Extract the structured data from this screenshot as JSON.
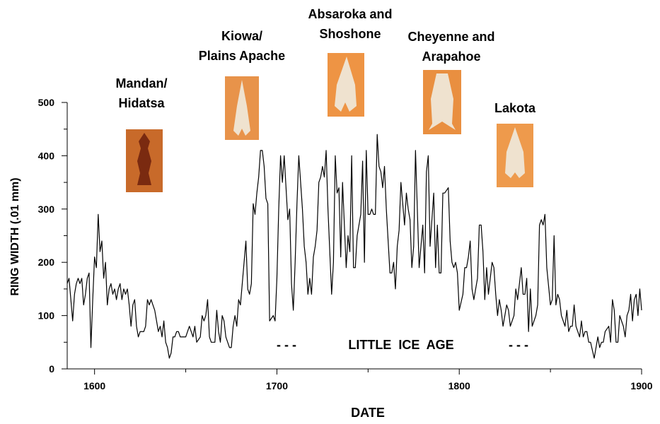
{
  "chart_data": {
    "type": "line",
    "xlabel": "DATE",
    "ylabel": "RING WIDTH (.01 mm)",
    "xlim": [
      1585,
      1900
    ],
    "ylim": [
      0,
      500
    ],
    "xticks": [
      1600,
      1700,
      1800,
      1900
    ],
    "xminor": [
      1650,
      1750,
      1850
    ],
    "yticks": [
      0,
      100,
      200,
      300,
      400,
      500
    ],
    "yminor": [
      50,
      150,
      250,
      350,
      450
    ],
    "color": "#000000",
    "annotations": [
      {
        "lines": [
          "Mandan/",
          "Hidatsa"
        ]
      },
      {
        "lines": [
          "Kiowa/",
          "Plains Apache"
        ]
      },
      {
        "lines": [
          "Absaroka and",
          "Shoshone"
        ]
      },
      {
        "lines": [
          "Cheyenne and",
          "Arapahoe"
        ]
      },
      {
        "lines": [
          "Lakota"
        ]
      },
      {
        "lines": [
          "- - -"
        ]
      },
      {
        "lines": [
          "LITTLE  ICE  AGE"
        ]
      },
      {
        "lines": [
          "- - -"
        ]
      }
    ],
    "x": [
      1585,
      1586,
      1587,
      1588,
      1589,
      1590,
      1591,
      1592,
      1593,
      1594,
      1595,
      1596,
      1597,
      1598,
      1599,
      1600,
      1601,
      1602,
      1603,
      1604,
      1605,
      1606,
      1607,
      1608,
      1609,
      1610,
      1611,
      1612,
      1613,
      1614,
      1615,
      1616,
      1617,
      1618,
      1619,
      1620,
      1621,
      1622,
      1623,
      1624,
      1625,
      1626,
      1627,
      1628,
      1629,
      1630,
      1631,
      1632,
      1633,
      1634,
      1635,
      1636,
      1637,
      1638,
      1639,
      1640,
      1641,
      1642,
      1643,
      1644,
      1645,
      1646,
      1647,
      1648,
      1649,
      1650,
      1651,
      1652,
      1653,
      1654,
      1655,
      1656,
      1657,
      1658,
      1659,
      1660,
      1661,
      1662,
      1663,
      1664,
      1665,
      1666,
      1667,
      1668,
      1669,
      1670,
      1671,
      1672,
      1673,
      1674,
      1675,
      1676,
      1677,
      1678,
      1679,
      1680,
      1681,
      1682,
      1683,
      1684,
      1685,
      1686,
      1687,
      1688,
      1689,
      1690,
      1691,
      1692,
      1693,
      1694,
      1695,
      1696,
      1697,
      1698,
      1699,
      1700,
      1701,
      1702,
      1703,
      1704,
      1705,
      1706,
      1707,
      1708,
      1709,
      1710,
      1711,
      1712,
      1713,
      1714,
      1715,
      1716,
      1717,
      1718,
      1719,
      1720,
      1721,
      1722,
      1723,
      1724,
      1725,
      1726,
      1727,
      1728,
      1729,
      1730,
      1731,
      1732,
      1733,
      1734,
      1735,
      1736,
      1737,
      1738,
      1739,
      1740,
      1741,
      1742,
      1743,
      1744,
      1745,
      1746,
      1747,
      1748,
      1749,
      1750,
      1751,
      1752,
      1753,
      1754,
      1755,
      1756,
      1757,
      1758,
      1759,
      1760,
      1761,
      1762,
      1763,
      1764,
      1765,
      1766,
      1767,
      1768,
      1769,
      1770,
      1771,
      1772,
      1773,
      1774,
      1775,
      1776,
      1777,
      1778,
      1779,
      1780,
      1781,
      1782,
      1783,
      1784,
      1785,
      1786,
      1787,
      1788,
      1789,
      1790,
      1791,
      1792,
      1793,
      1794,
      1795,
      1796,
      1797,
      1798,
      1799,
      1800,
      1801,
      1802,
      1803,
      1804,
      1805,
      1806,
      1807,
      1808,
      1809,
      1810,
      1811,
      1812,
      1813,
      1814,
      1815,
      1816,
      1817,
      1818,
      1819,
      1820,
      1821,
      1822,
      1823,
      1824,
      1825,
      1826,
      1827,
      1828,
      1829,
      1830,
      1831,
      1832,
      1833,
      1834,
      1835,
      1836,
      1837,
      1838,
      1839,
      1840,
      1841,
      1842,
      1843,
      1844,
      1845,
      1846,
      1847,
      1848,
      1849,
      1850,
      1851,
      1852,
      1853,
      1854,
      1855,
      1856,
      1857,
      1858,
      1859,
      1860,
      1861,
      1862,
      1863,
      1864,
      1865,
      1866,
      1867,
      1868,
      1869,
      1870,
      1871,
      1872,
      1873,
      1874,
      1875,
      1876,
      1877,
      1878,
      1879,
      1880,
      1881,
      1882,
      1883,
      1884,
      1885,
      1886,
      1887,
      1888,
      1889,
      1890,
      1891,
      1892,
      1893,
      1894,
      1895,
      1896,
      1897,
      1898,
      1899,
      1900
    ],
    "values": [
      160,
      170,
      130,
      90,
      140,
      160,
      170,
      160,
      170,
      120,
      140,
      170,
      180,
      40,
      130,
      210,
      190,
      290,
      220,
      240,
      170,
      200,
      120,
      150,
      160,
      140,
      150,
      130,
      150,
      160,
      130,
      150,
      140,
      150,
      120,
      80,
      120,
      130,
      80,
      60,
      70,
      70,
      70,
      80,
      130,
      120,
      130,
      120,
      110,
      90,
      70,
      80,
      60,
      90,
      50,
      40,
      20,
      30,
      60,
      60,
      70,
      70,
      60,
      60,
      60,
      60,
      70,
      80,
      70,
      60,
      80,
      50,
      55,
      60,
      100,
      90,
      100,
      130,
      60,
      50,
      50,
      50,
      110,
      70,
      50,
      100,
      90,
      60,
      50,
      40,
      40,
      80,
      100,
      80,
      130,
      120,
      160,
      200,
      240,
      150,
      140,
      160,
      310,
      290,
      330,
      360,
      410,
      410,
      380,
      320,
      310,
      90,
      95,
      100,
      90,
      170,
      300,
      400,
      350,
      400,
      340,
      280,
      300,
      160,
      110,
      200,
      310,
      400,
      350,
      300,
      230,
      200,
      140,
      170,
      140,
      210,
      230,
      260,
      350,
      360,
      380,
      360,
      410,
      300,
      220,
      140,
      200,
      400,
      330,
      340,
      210,
      350,
      270,
      190,
      250,
      220,
      400,
      190,
      190,
      250,
      270,
      290,
      390,
      200,
      410,
      290,
      290,
      300,
      290,
      290,
      440,
      380,
      370,
      340,
      380,
      300,
      240,
      180,
      180,
      200,
      150,
      230,
      260,
      350,
      310,
      270,
      330,
      300,
      280,
      190,
      230,
      410,
      300,
      190,
      230,
      270,
      180,
      370,
      400,
      230,
      280,
      330,
      190,
      270,
      180,
      180,
      330,
      330,
      335,
      340,
      240,
      200,
      190,
      200,
      180,
      110,
      125,
      140,
      190,
      190,
      210,
      240,
      150,
      130,
      150,
      170,
      270,
      270,
      220,
      130,
      190,
      140,
      170,
      200,
      190,
      140,
      100,
      130,
      110,
      80,
      100,
      120,
      110,
      80,
      90,
      100,
      150,
      130,
      160,
      190,
      140,
      140,
      170,
      70,
      150,
      80,
      90,
      100,
      120,
      270,
      280,
      270,
      290,
      190,
      155,
      120,
      130,
      250,
      120,
      140,
      130,
      100,
      90,
      80,
      110,
      70,
      80,
      80,
      120,
      80,
      70,
      60,
      90,
      60,
      70,
      70,
      50,
      50,
      35,
      20,
      40,
      60,
      40,
      50,
      50,
      70,
      75,
      80,
      50,
      130,
      110,
      50,
      50,
      100,
      90,
      80,
      60,
      100,
      110,
      140,
      90,
      130,
      140,
      100,
      150,
      110
    ]
  }
}
